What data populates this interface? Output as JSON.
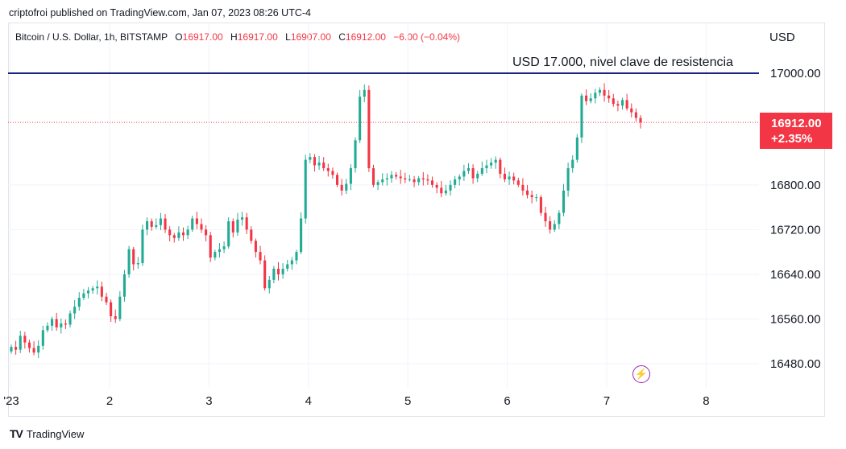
{
  "header": {
    "publisher": "criptofroi published on TradingView.com, Jan 07, 2023 08:26 UTC-4"
  },
  "legend": {
    "symbol": "Bitcoin / U.S. Dollar, 1h, BITSTAMP",
    "o_label": "O",
    "o_value": "16917.00",
    "h_label": "H",
    "h_value": "16917.00",
    "l_label": "L",
    "l_value": "16907.00",
    "c_label": "C",
    "c_value": "16912.00",
    "change": "−6.00 (−0.04%)"
  },
  "currency": "USD",
  "annotation": "USD 17.000, nivel clave de resistencia",
  "price_tag": {
    "price": "16912.00",
    "change_pct": "+2.35%"
  },
  "footer": {
    "logo": "TV",
    "brand": "TradingView"
  },
  "colors": {
    "up": "#22ab94",
    "down": "#f23645",
    "resistance": "#1a237e",
    "current": "#f23645"
  },
  "chart_data": {
    "type": "candlestick",
    "ylim": [
      16430,
      17050
    ],
    "y_ticks": [
      17000,
      16800,
      16720,
      16640,
      16560,
      16480
    ],
    "y_tick_labels": [
      "17000.00",
      "16800.00",
      "16720.00",
      "16640.00",
      "16560.00",
      "16480.00"
    ],
    "x_ticks": [
      1,
      2,
      3,
      4,
      5,
      6,
      7,
      8
    ],
    "x_tick_labels": [
      "'23",
      "2",
      "3",
      "4",
      "5",
      "6",
      "7",
      "8"
    ],
    "xlim": [
      0.985,
      8.25
    ],
    "resistance": 17000,
    "current_price": 16912,
    "closes": [
      16510,
      16505,
      16530,
      16518,
      16508,
      16500,
      16512,
      16540,
      16548,
      16560,
      16545,
      16552,
      16550,
      16570,
      16582,
      16598,
      16606,
      16611,
      16615,
      16618,
      16600,
      16590,
      16565,
      16560,
      16600,
      16640,
      16685,
      16658,
      16660,
      16720,
      16735,
      16725,
      16728,
      16740,
      16720,
      16710,
      16705,
      16715,
      16710,
      16720,
      16740,
      16730,
      16720,
      16710,
      16670,
      16680,
      16685,
      16690,
      16735,
      16715,
      16738,
      16742,
      16720,
      16700,
      16680,
      16665,
      16615,
      16630,
      16650,
      16640,
      16650,
      16658,
      16665,
      16680,
      16740,
      16845,
      16850,
      16835,
      16840,
      16830,
      16825,
      16818,
      16800,
      16790,
      16802,
      16830,
      16880,
      16958,
      16970,
      16830,
      16800,
      16805,
      16810,
      16812,
      16818,
      16815,
      16812,
      16810,
      16810,
      16805,
      16812,
      16810,
      16808,
      16800,
      16795,
      16785,
      16790,
      16800,
      16810,
      16815,
      16825,
      16830,
      16812,
      16820,
      16830,
      16835,
      16840,
      16845,
      16820,
      16810,
      16815,
      16808,
      16800,
      16790,
      16782,
      16778,
      16778,
      16750,
      16735,
      16720,
      16730,
      16750,
      16790,
      16830,
      16845,
      16885,
      16960,
      16950,
      16955,
      16965,
      16970,
      16960,
      16955,
      16945,
      16942,
      16952,
      16937,
      16930,
      16920,
      16912
    ]
  }
}
